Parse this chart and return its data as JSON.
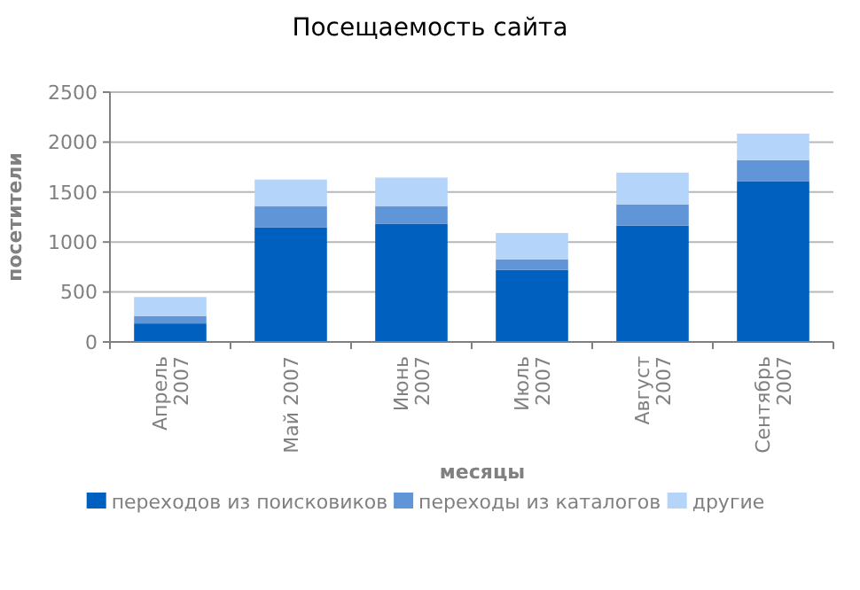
{
  "chart_data": {
    "type": "bar",
    "title": "Посещаемость сайта",
    "xlabel": "месяцы",
    "ylabel": "посетители",
    "categories": [
      "Апрель 2007",
      "Май 2007",
      "Июнь 2007",
      "Июль 2007",
      "Август 2007",
      "Сентябрь 2007"
    ],
    "series": [
      {
        "name": "переходов из поисковиков",
        "color": "#0060c0",
        "values": [
          185,
          1145,
          1180,
          720,
          1165,
          1605
        ]
      },
      {
        "name": "переходы из каталогов",
        "color": "#6096d8",
        "values": [
          75,
          215,
          180,
          105,
          210,
          215
        ]
      },
      {
        "name": "другие",
        "color": "#b4d4fa",
        "values": [
          190,
          265,
          285,
          265,
          320,
          265
        ]
      }
    ],
    "stacked": true,
    "ylim": [
      0,
      2500
    ],
    "yticks": [
      0,
      500,
      1000,
      1500,
      2000,
      2500
    ],
    "grid": "y",
    "legend": "bottom"
  }
}
